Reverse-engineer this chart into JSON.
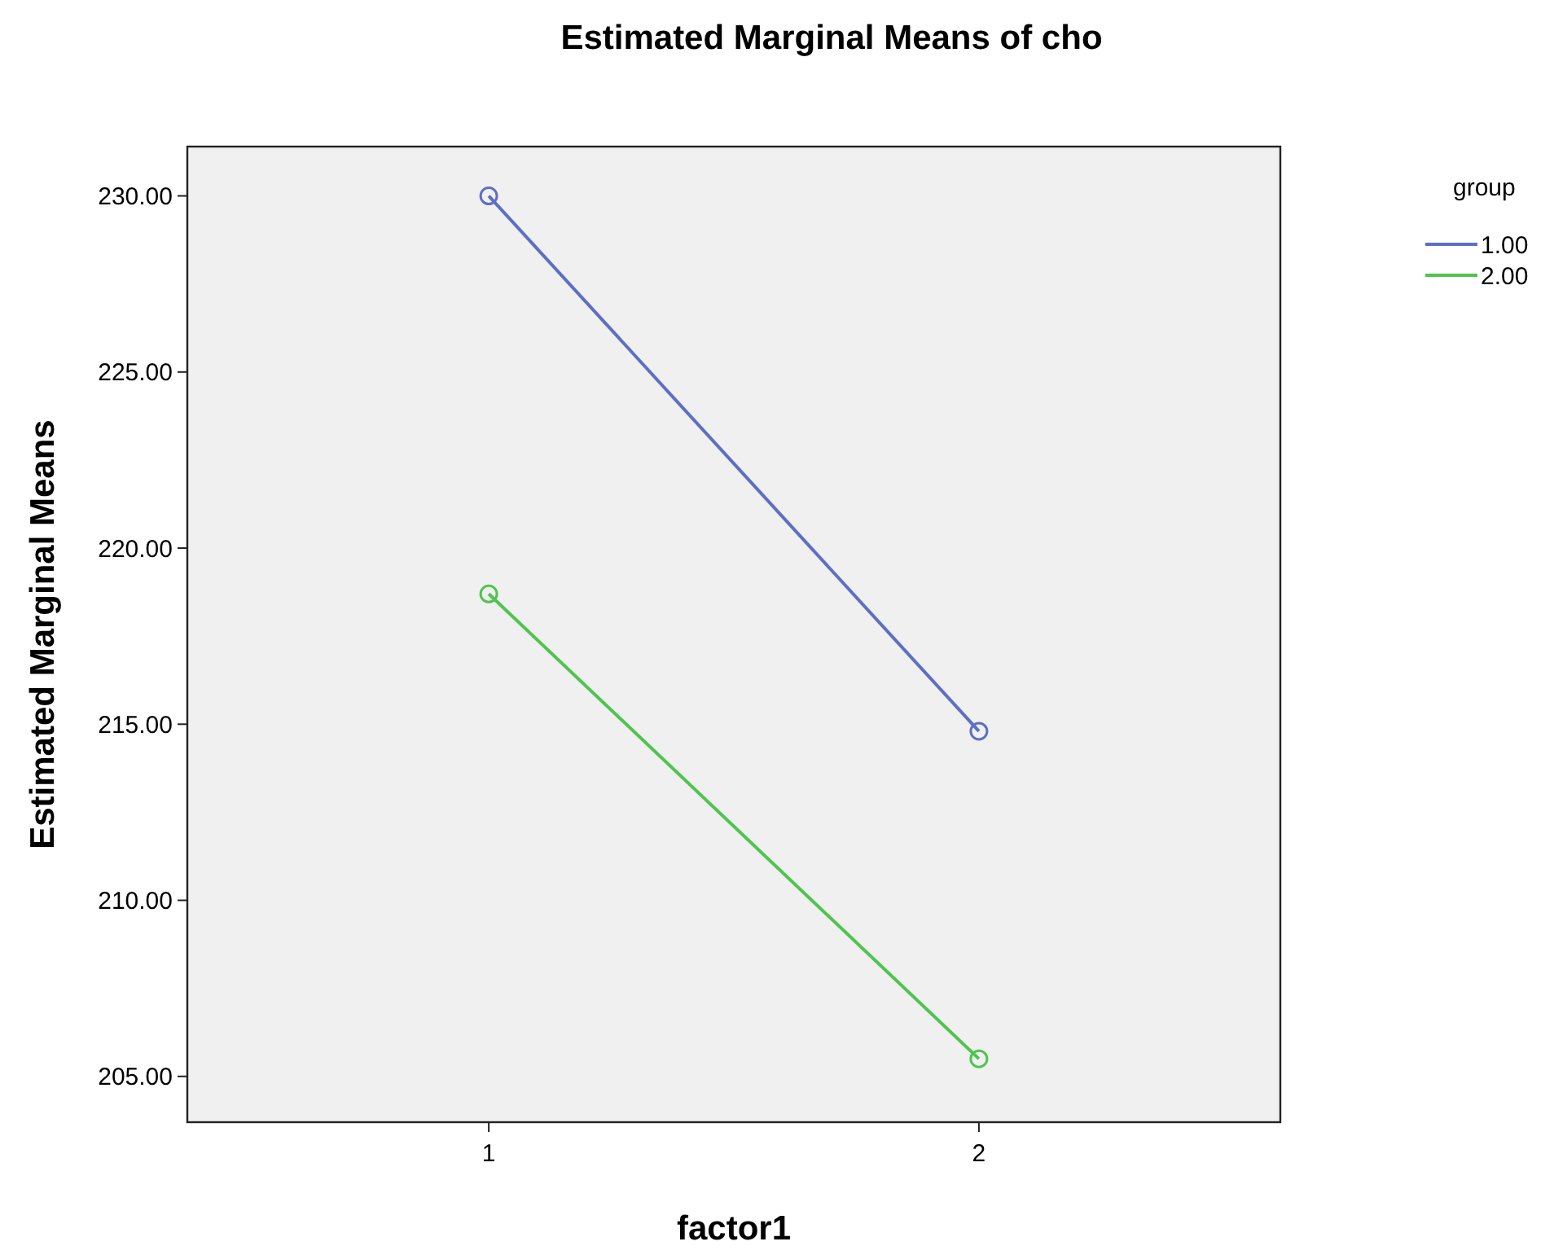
{
  "chart_data": {
    "type": "line",
    "title": "Estimated Marginal Means of cho",
    "xlabel": "factor1",
    "ylabel": "Estimated Marginal Means",
    "legend_title": "group",
    "categories": [
      "1",
      "2"
    ],
    "series": [
      {
        "name": "1.00",
        "color": "#5d6fc4",
        "values": [
          230.0,
          214.8
        ]
      },
      {
        "name": "2.00",
        "color": "#4fc44f",
        "values": [
          218.7,
          205.5
        ]
      }
    ],
    "ylim": [
      203.7,
      231.4
    ],
    "yticks": [
      {
        "value": 205,
        "label": "205.00"
      },
      {
        "value": 210,
        "label": "210.00"
      },
      {
        "value": 215,
        "label": "215.00"
      },
      {
        "value": 220,
        "label": "220.00"
      },
      {
        "value": 225,
        "label": "225.00"
      },
      {
        "value": 230,
        "label": "230.00"
      }
    ],
    "marker": "circle",
    "line_style": "solid",
    "grid": false,
    "legend": "right"
  }
}
